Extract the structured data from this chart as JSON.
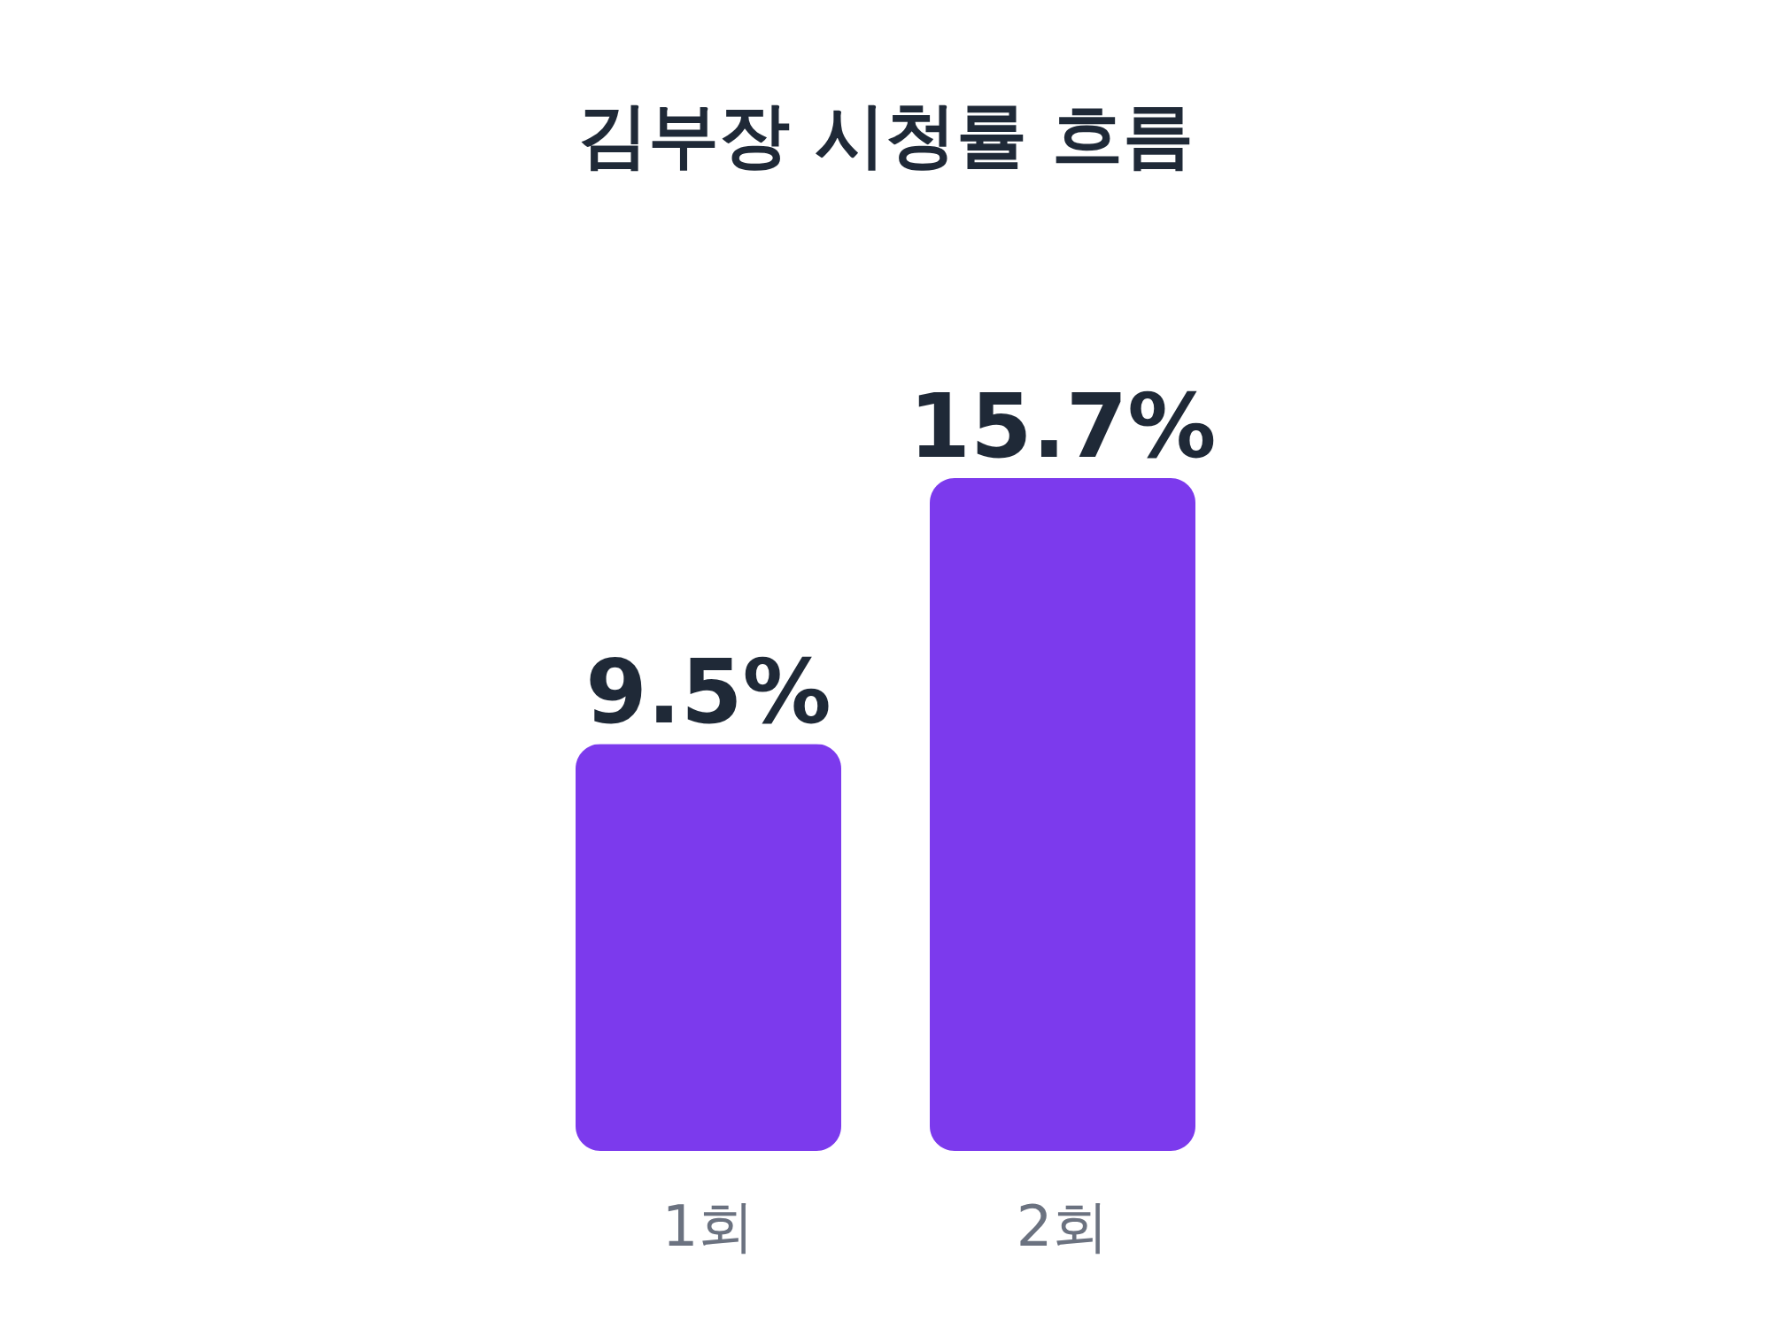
{
  "chart_data": {
    "type": "bar",
    "title": "김부장 시청률 흐름",
    "categories": [
      "1회",
      "2회"
    ],
    "values": [
      9.5,
      15.7
    ],
    "value_labels": [
      "9.5%",
      "15.7%"
    ],
    "color": "#7c3aed",
    "grid": false
  }
}
